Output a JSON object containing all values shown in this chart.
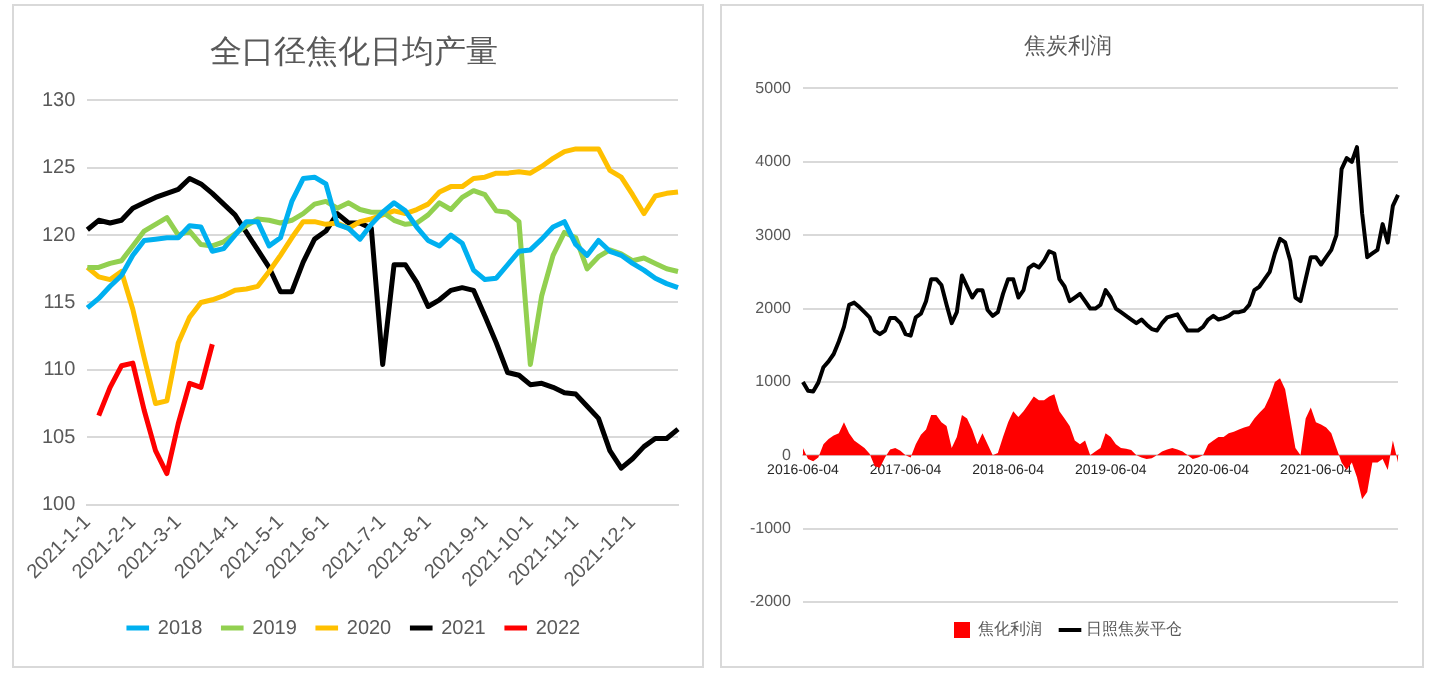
{
  "chart_data": [
    {
      "type": "line",
      "title": "全口径焦化日均产量",
      "categories": [
        "2021-1-1",
        null,
        null,
        null,
        "2021-2-1",
        null,
        null,
        null,
        "2021-3-1",
        null,
        null,
        null,
        null,
        "2021-4-1",
        null,
        null,
        null,
        "2021-5-1",
        null,
        null,
        null,
        "2021-6-1",
        null,
        null,
        null,
        null,
        "2021-7-1",
        null,
        null,
        null,
        "2021-8-1",
        null,
        null,
        null,
        null,
        "2021-9-1",
        null,
        null,
        null,
        "2021-10-1",
        null,
        null,
        null,
        "2021-11-1",
        null,
        null,
        null,
        null,
        "2021-12-1",
        null,
        null,
        null,
        null
      ],
      "series": [
        {
          "name": "2018",
          "color": "#00b0f0",
          "values": [
            114.6,
            115.3,
            116.2,
            117.0,
            118.5,
            119.6,
            119.7,
            119.8,
            119.8,
            120.7,
            120.6,
            118.8,
            119.0,
            120.0,
            121.0,
            121.0,
            119.2,
            119.8,
            122.5,
            124.2,
            124.3,
            123.8,
            120.8,
            120.5,
            119.7,
            120.8,
            121.7,
            122.4,
            121.8,
            120.6,
            119.6,
            119.2,
            120.0,
            119.4,
            117.4,
            116.7,
            116.8,
            117.8,
            118.8,
            118.9,
            119.7,
            120.6,
            121.0,
            119.3,
            118.5,
            119.6,
            118.8,
            118.5,
            117.9,
            117.4,
            116.8,
            116.4,
            116.1
          ]
        },
        {
          "name": "2019",
          "color": "#92d050",
          "values": [
            117.6,
            117.6,
            117.9,
            118.1,
            119.2,
            120.3,
            120.8,
            121.3,
            120.0,
            120.3,
            119.3,
            119.2,
            119.5,
            120.1,
            120.7,
            121.2,
            121.1,
            120.9,
            121.1,
            121.6,
            122.3,
            122.5,
            122.0,
            122.4,
            121.9,
            121.7,
            121.7,
            121.1,
            120.8,
            120.9,
            121.5,
            122.4,
            121.9,
            122.8,
            123.3,
            123.0,
            121.8,
            121.7,
            121.0,
            110.4,
            115.5,
            118.5,
            120.2,
            119.8,
            117.5,
            118.4,
            118.9,
            118.6,
            118.1,
            118.3,
            117.9,
            117.5,
            117.3
          ]
        },
        {
          "name": "2020",
          "color": "#ffc000",
          "values": [
            117.6,
            116.9,
            116.7,
            117.3,
            114.5,
            110.9,
            107.5,
            107.7,
            112.0,
            113.9,
            115.0,
            115.2,
            115.5,
            115.9,
            116.0,
            116.2,
            117.3,
            118.5,
            119.8,
            121.0,
            121.0,
            120.8,
            120.9,
            120.5,
            121.0,
            121.2,
            121.5,
            121.8,
            121.6,
            121.9,
            122.3,
            123.2,
            123.6,
            123.6,
            124.2,
            124.3,
            124.6,
            124.6,
            124.7,
            124.6,
            125.1,
            125.7,
            126.2,
            126.4,
            126.4,
            126.4,
            124.8,
            124.3,
            123.0,
            121.6,
            122.9,
            123.1,
            123.2
          ]
        },
        {
          "name": "2021",
          "color": "#000000",
          "values": [
            120.4,
            121.1,
            120.9,
            121.1,
            122.0,
            122.4,
            122.8,
            123.1,
            123.4,
            124.2,
            123.8,
            123.1,
            122.3,
            121.5,
            120.2,
            118.9,
            117.6,
            115.8,
            115.8,
            118.0,
            119.7,
            120.3,
            121.6,
            120.9,
            120.9,
            120.5,
            110.4,
            117.8,
            117.8,
            116.5,
            114.7,
            115.2,
            115.9,
            116.1,
            115.9,
            114.0,
            112.0,
            109.8,
            109.6,
            108.9,
            109.0,
            108.7,
            108.3,
            108.2,
            107.3,
            106.4,
            104.0,
            102.7,
            103.4,
            104.3,
            104.9,
            104.9,
            105.6
          ]
        },
        {
          "name": "2022",
          "color": "#ff0000",
          "values": [
            null,
            106.6,
            108.7,
            110.3,
            110.5,
            107.0,
            104.0,
            102.3,
            106.0,
            109.0,
            108.7,
            111.9,
            null,
            null,
            null,
            null,
            null,
            null,
            null,
            null,
            null,
            null,
            null,
            null,
            null,
            null,
            null,
            null,
            null,
            null,
            null,
            null,
            null,
            null,
            null,
            null,
            null,
            null,
            null,
            null,
            null,
            null,
            null,
            null,
            null,
            null,
            null,
            null,
            null,
            null,
            null,
            null,
            null
          ]
        }
      ],
      "ylim": [
        100,
        130
      ],
      "yticks": [
        100,
        105,
        110,
        115,
        120,
        125,
        130
      ],
      "grid": "y",
      "legend": "bottom"
    },
    {
      "type": "line",
      "title": "焦炭利润",
      "categories": [
        "2016-06-04",
        null,
        null,
        null,
        null,
        null,
        null,
        null,
        null,
        null,
        null,
        null,
        null,
        null,
        null,
        null,
        null,
        null,
        null,
        null,
        "2017-06-04",
        null,
        null,
        null,
        null,
        null,
        null,
        null,
        null,
        null,
        null,
        null,
        null,
        null,
        null,
        null,
        null,
        null,
        null,
        null,
        "2018-06-04",
        null,
        null,
        null,
        null,
        null,
        null,
        null,
        null,
        null,
        null,
        null,
        null,
        null,
        null,
        null,
        null,
        null,
        null,
        null,
        "2019-06-04",
        null,
        null,
        null,
        null,
        null,
        null,
        null,
        null,
        null,
        null,
        null,
        null,
        null,
        null,
        null,
        null,
        null,
        null,
        null,
        "2020-06-04",
        null,
        null,
        null,
        null,
        null,
        null,
        null,
        null,
        null,
        null,
        null,
        null,
        null,
        null,
        null,
        null,
        null,
        null,
        null,
        "2021-06-04",
        null,
        null,
        null,
        null,
        null,
        null,
        null,
        null,
        null,
        null,
        null,
        null,
        null,
        null,
        null,
        null
      ],
      "series": [
        {
          "name": "焦化利润",
          "type": "area",
          "color": "#ff0000",
          "values": [
            100,
            -50,
            -80,
            -30,
            150,
            220,
            270,
            300,
            450,
            300,
            200,
            150,
            100,
            20,
            -150,
            -170,
            -30,
            80,
            100,
            60,
            0,
            -30,
            150,
            280,
            350,
            550,
            550,
            450,
            400,
            100,
            250,
            550,
            500,
            350,
            150,
            300,
            150,
            0,
            30,
            250,
            450,
            600,
            520,
            600,
            700,
            800,
            750,
            750,
            800,
            830,
            600,
            500,
            400,
            200,
            150,
            200,
            0,
            50,
            100,
            300,
            250,
            150,
            100,
            90,
            70,
            0,
            -30,
            -50,
            -40,
            0,
            50,
            80,
            100,
            80,
            50,
            0,
            -50,
            -30,
            0,
            150,
            200,
            250,
            250,
            300,
            320,
            350,
            380,
            400,
            500,
            580,
            650,
            800,
            1000,
            1050,
            900,
            500,
            100,
            0,
            500,
            650,
            450,
            420,
            380,
            300,
            100,
            -100,
            -200,
            -100,
            -300,
            -600,
            -500,
            -100,
            -100,
            -50,
            -200,
            200,
            -100
          ]
        },
        {
          "name": "日照焦炭平仓",
          "color": "#000000",
          "values": [
            1000,
            880,
            870,
            990,
            1200,
            1280,
            1380,
            1550,
            1750,
            2050,
            2080,
            2020,
            1950,
            1880,
            1700,
            1650,
            1700,
            1870,
            1870,
            1800,
            1650,
            1630,
            1880,
            1930,
            2100,
            2400,
            2400,
            2320,
            2050,
            1800,
            1950,
            2450,
            2300,
            2150,
            2250,
            2250,
            1980,
            1900,
            1950,
            2200,
            2400,
            2400,
            2150,
            2250,
            2550,
            2600,
            2560,
            2650,
            2780,
            2750,
            2400,
            2300,
            2100,
            2150,
            2200,
            2100,
            2000,
            2000,
            2050,
            2250,
            2150,
            2000,
            1950,
            1900,
            1850,
            1800,
            1850,
            1780,
            1720,
            1700,
            1800,
            1880,
            1900,
            1920,
            1800,
            1700,
            1700,
            1700,
            1750,
            1850,
            1900,
            1850,
            1870,
            1900,
            1950,
            1950,
            1970,
            2050,
            2250,
            2300,
            2400,
            2500,
            2750,
            2950,
            2900,
            2650,
            2150,
            2100,
            2400,
            2700,
            2700,
            2600,
            2700,
            2800,
            3000,
            3900,
            4050,
            4000,
            4200,
            3300,
            2700,
            2750,
            2800,
            3150,
            2900,
            3400,
            3550
          ]
        }
      ],
      "ylim": [
        -2000,
        5000
      ],
      "yticks": [
        -2000,
        -1000,
        0,
        1000,
        2000,
        3000,
        4000,
        5000
      ],
      "grid": "y",
      "legend": "bottom"
    }
  ]
}
